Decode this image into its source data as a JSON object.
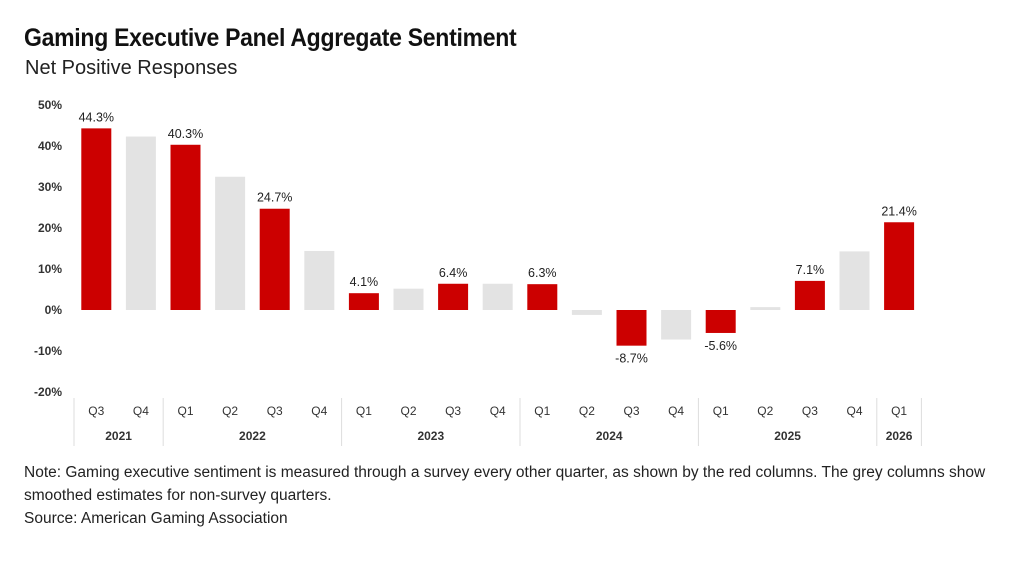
{
  "header": {
    "title": "Gaming Executive Panel Aggregate Sentiment",
    "subtitle": "Net Positive Responses"
  },
  "footer": {
    "note": "Note: Gaming executive sentiment is measured through a survey every other quarter, as shown by the red columns. The grey columns show smoothed estimates for non-survey quarters.",
    "source": "Source: American Gaming Association"
  },
  "colors": {
    "survey": "#cc0000",
    "estimate": "#e3e3e3",
    "axis_text": "#333333",
    "separator": "#dddddd"
  },
  "chart_data": {
    "type": "bar",
    "title": "Gaming Executive Panel Aggregate Sentiment",
    "subtitle": "Net Positive Responses",
    "ylim": [
      -20,
      50
    ],
    "yticks": [
      -20,
      -10,
      0,
      10,
      20,
      30,
      40,
      50
    ],
    "ytick_labels": [
      "-20%",
      "-10%",
      "0%",
      "10%",
      "20%",
      "30%",
      "40%",
      "50%"
    ],
    "grid": false,
    "categories": [
      "Q3",
      "Q4",
      "Q1",
      "Q2",
      "Q3",
      "Q4",
      "Q1",
      "Q2",
      "Q3",
      "Q4",
      "Q1",
      "Q2",
      "Q3",
      "Q4",
      "Q1",
      "Q2",
      "Q3",
      "Q4",
      "Q1"
    ],
    "years": [
      {
        "label": "2021",
        "count": 2
      },
      {
        "label": "2022",
        "count": 4
      },
      {
        "label": "2023",
        "count": 4
      },
      {
        "label": "2024",
        "count": 4
      },
      {
        "label": "2025",
        "count": 4
      },
      {
        "label": "2026",
        "count": 1
      }
    ],
    "values": [
      44.3,
      42.3,
      40.3,
      32.5,
      24.7,
      14.4,
      4.1,
      5.2,
      6.4,
      6.4,
      6.3,
      -1.2,
      -8.7,
      -7.2,
      -5.6,
      0.7,
      7.1,
      14.3,
      21.4
    ],
    "survey": [
      true,
      false,
      true,
      false,
      true,
      false,
      true,
      false,
      true,
      false,
      true,
      false,
      true,
      false,
      true,
      false,
      true,
      false,
      true
    ],
    "data_labels": [
      "44.3%",
      "",
      "40.3%",
      "",
      "24.7%",
      "",
      "4.1%",
      "",
      "6.4%",
      "",
      "6.3%",
      "",
      "-8.7%",
      "",
      "-5.6%",
      "",
      "7.1%",
      "",
      "21.4%"
    ]
  }
}
